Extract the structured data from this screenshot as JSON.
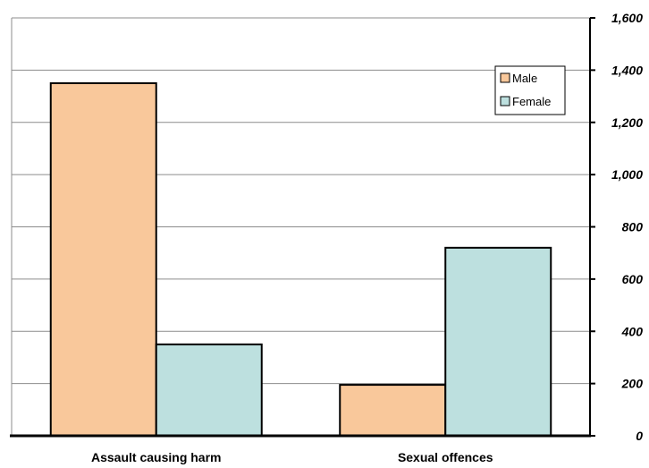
{
  "chart_data": {
    "type": "bar",
    "categories": [
      "Assault causing harm",
      "Sexual offences"
    ],
    "series": [
      {
        "name": "Male",
        "values": [
          1350,
          195
        ],
        "color": "#f9c89b"
      },
      {
        "name": "Female",
        "values": [
          350,
          720
        ],
        "color": "#bde0df"
      }
    ],
    "ylim": [
      0,
      1600
    ],
    "yticks": [
      "0",
      "200",
      "400",
      "600",
      "800",
      "1,000",
      "1,200",
      "1,400",
      "1,600"
    ],
    "y_axis_side": "right",
    "grid": true,
    "legend_position": "top-right",
    "title": "",
    "xlabel": "",
    "ylabel": ""
  }
}
